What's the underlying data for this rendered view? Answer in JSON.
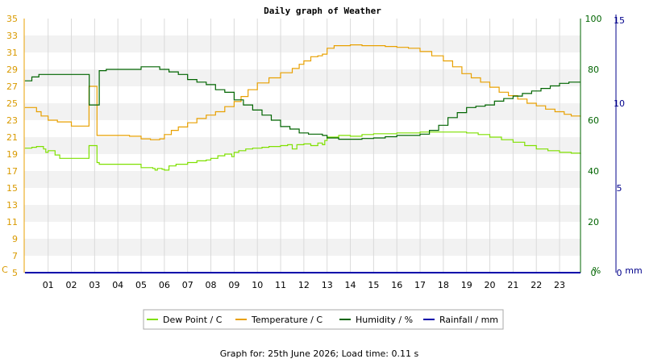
{
  "chart_data": {
    "type": "line",
    "title": "Daily graph of Weather",
    "x_ticks": [
      "01",
      "02",
      "03",
      "04",
      "05",
      "06",
      "07",
      "08",
      "09",
      "10",
      "11",
      "12",
      "13",
      "14",
      "15",
      "16",
      "17",
      "18",
      "19",
      "20",
      "21",
      "22",
      "23"
    ],
    "axes": {
      "left": {
        "unit": "C",
        "ylim": [
          5,
          35
        ],
        "ticks": [
          5,
          7,
          9,
          11,
          13,
          15,
          17,
          19,
          21,
          23,
          25,
          27,
          29,
          31,
          33,
          35
        ],
        "color": "#d99a00"
      },
      "right1": {
        "unit": "%",
        "ylim": [
          0,
          100
        ],
        "ticks": [
          0,
          20,
          40,
          60,
          80,
          100
        ],
        "color": "#006400"
      },
      "right2": {
        "unit": "mm",
        "ylim": [
          0,
          15
        ],
        "ticks": [
          0,
          5,
          10,
          15
        ],
        "color": "#00008b"
      }
    },
    "grid": true,
    "legend_placement": "bottom",
    "series": [
      {
        "name": "Dew Point / C",
        "axis": "left",
        "color": "#7fe000",
        "x": [
          0,
          0.3,
          0.4,
          0.5,
          0.8,
          0.9,
          1.0,
          1.3,
          1.5,
          2.5,
          2.75,
          2.76,
          3.1,
          3.2,
          4.0,
          4.5,
          5.0,
          5.5,
          5.6,
          5.7,
          5.9,
          6.0,
          6.2,
          6.5,
          7.0,
          7.4,
          7.8,
          8.0,
          8.3,
          8.6,
          8.9,
          9.0,
          9.2,
          9.5,
          9.8,
          10.2,
          10.5,
          11.0,
          11.3,
          11.5,
          11.7,
          12.0,
          12.3,
          12.6,
          12.8,
          12.9,
          13.0,
          13.5,
          14.0,
          14.5,
          15.0,
          15.5,
          16.0,
          16.5,
          17.0,
          17.5,
          18.0,
          18.5,
          19.0,
          19.5,
          20.0,
          20.5,
          21.0,
          21.5,
          22.0,
          22.5,
          23.0,
          23.5,
          23.9
        ],
        "y": [
          19.7,
          19.8,
          19.8,
          19.9,
          19.6,
          19.2,
          19.4,
          18.9,
          18.5,
          18.5,
          18.5,
          20.0,
          18.0,
          17.8,
          17.8,
          17.8,
          17.4,
          17.3,
          17.1,
          17.3,
          17.2,
          17.1,
          17.6,
          17.8,
          18.0,
          18.2,
          18.3,
          18.5,
          18.8,
          19.0,
          18.7,
          19.2,
          19.4,
          19.6,
          19.7,
          19.8,
          19.9,
          20.0,
          20.1,
          19.6,
          20.1,
          20.2,
          20.0,
          20.3,
          20.1,
          20.6,
          21.0,
          21.2,
          21.1,
          21.3,
          21.4,
          21.4,
          21.5,
          21.5,
          21.6,
          21.6,
          21.6,
          21.6,
          21.5,
          21.3,
          21.0,
          20.7,
          20.4,
          20.0,
          19.6,
          19.4,
          19.2,
          19.1,
          19.0
        ]
      },
      {
        "name": "Temperature / C",
        "axis": "left",
        "color": "#e8a000",
        "x": [
          0,
          0.4,
          0.5,
          0.7,
          1.0,
          1.4,
          2.0,
          2.5,
          2.76,
          3.0,
          3.1,
          3.5,
          4.0,
          4.5,
          5.0,
          5.4,
          5.8,
          6.0,
          6.3,
          6.6,
          7.0,
          7.4,
          7.8,
          8.2,
          8.6,
          9.0,
          9.3,
          9.6,
          10.0,
          10.5,
          11.0,
          11.5,
          11.8,
          12.0,
          12.3,
          12.6,
          12.8,
          13.0,
          13.3,
          14.0,
          14.5,
          15.0,
          15.5,
          16.0,
          16.5,
          17.0,
          17.5,
          18.0,
          18.4,
          18.8,
          19.2,
          19.6,
          20.0,
          20.4,
          20.8,
          21.2,
          21.6,
          22.0,
          22.4,
          22.8,
          23.2,
          23.5,
          23.9
        ],
        "y": [
          24.5,
          24.5,
          24.0,
          23.5,
          23.0,
          22.8,
          22.3,
          22.3,
          27.0,
          27.0,
          21.2,
          21.2,
          21.2,
          21.1,
          20.8,
          20.7,
          20.8,
          21.3,
          21.8,
          22.2,
          22.7,
          23.2,
          23.6,
          24.0,
          24.6,
          25.2,
          25.8,
          26.6,
          27.4,
          28.0,
          28.6,
          29.1,
          29.6,
          30.0,
          30.5,
          30.6,
          30.8,
          31.5,
          31.8,
          31.9,
          31.8,
          31.8,
          31.7,
          31.6,
          31.5,
          31.1,
          30.6,
          30.0,
          29.3,
          28.5,
          28.0,
          27.5,
          26.9,
          26.3,
          25.9,
          25.5,
          25.0,
          24.7,
          24.3,
          24.0,
          23.7,
          23.5,
          23.4
        ]
      },
      {
        "name": "Humidity / %",
        "axis": "right1",
        "color": "#006400",
        "x": [
          0,
          0.3,
          0.6,
          0.9,
          1.2,
          1.6,
          2.0,
          2.5,
          2.76,
          2.77,
          3.1,
          3.2,
          3.5,
          4.0,
          4.5,
          5.0,
          5.5,
          5.8,
          6.2,
          6.6,
          7.0,
          7.4,
          7.8,
          8.2,
          8.6,
          9.0,
          9.4,
          9.8,
          10.2,
          10.6,
          11.0,
          11.4,
          11.8,
          12.2,
          12.6,
          12.8,
          13.0,
          13.5,
          14.0,
          14.5,
          15.0,
          15.5,
          16.0,
          16.5,
          17.0,
          17.4,
          17.8,
          18.2,
          18.6,
          19.0,
          19.4,
          19.8,
          20.2,
          20.6,
          21.0,
          21.4,
          21.8,
          22.2,
          22.6,
          23.0,
          23.4,
          23.9
        ],
        "y": [
          75.5,
          77,
          78,
          78,
          78,
          78,
          78,
          78,
          78,
          66,
          66,
          79.5,
          80,
          80,
          80,
          81,
          81,
          80,
          79,
          78,
          76,
          75,
          74,
          72,
          71,
          68,
          66,
          64,
          62,
          60,
          57.5,
          56.5,
          55,
          54.5,
          54.5,
          54,
          53,
          52.5,
          52.5,
          52.8,
          53,
          53.5,
          54,
          54,
          54.5,
          56,
          58,
          61,
          63,
          65,
          65.5,
          66,
          67.5,
          68.5,
          69.5,
          70.5,
          71.5,
          72.5,
          73.5,
          74.5,
          75,
          75
        ]
      },
      {
        "name": "Rainfall / mm",
        "axis": "right2",
        "color": "#0000aa",
        "x": [
          0,
          23.9
        ],
        "y": [
          0,
          0
        ]
      }
    ]
  },
  "legend_items": [
    "Dew Point / C",
    "Temperature / C",
    "Humidity / %",
    "Rainfall / mm"
  ],
  "footer": "Graph for: 25th June 2026; Load time: 0.11 s"
}
